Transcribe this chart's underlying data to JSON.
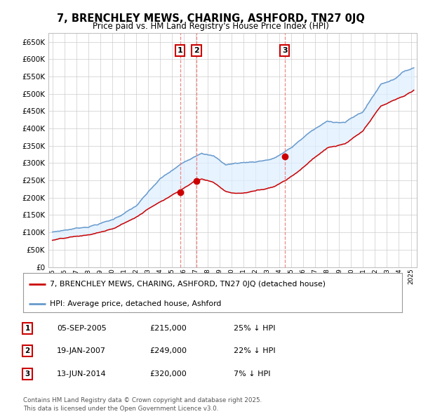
{
  "title": "7, BRENCHLEY MEWS, CHARING, ASHFORD, TN27 0JQ",
  "subtitle": "Price paid vs. HM Land Registry's House Price Index (HPI)",
  "ylim": [
    0,
    675000
  ],
  "yticks": [
    0,
    50000,
    100000,
    150000,
    200000,
    250000,
    300000,
    350000,
    400000,
    450000,
    500000,
    550000,
    600000,
    650000
  ],
  "ytick_labels": [
    "£0",
    "£50K",
    "£100K",
    "£150K",
    "£200K",
    "£250K",
    "£300K",
    "£350K",
    "£400K",
    "£450K",
    "£500K",
    "£550K",
    "£600K",
    "£650K"
  ],
  "hpi_color": "#6699cc",
  "price_color": "#cc0000",
  "vline_color": "#ee8888",
  "grid_color": "#cccccc",
  "fill_color": "#ddeeff",
  "sale_dates": [
    "2005-09-05",
    "2007-01-19",
    "2014-06-13"
  ],
  "sale_prices": [
    215000,
    249000,
    320000
  ],
  "sale_labels": [
    "1",
    "2",
    "3"
  ],
  "legend_price_label": "7, BRENCHLEY MEWS, CHARING, ASHFORD, TN27 0JQ (detached house)",
  "legend_hpi_label": "HPI: Average price, detached house, Ashford",
  "table_rows": [
    [
      "1",
      "05-SEP-2005",
      "£215,000",
      "25% ↓ HPI"
    ],
    [
      "2",
      "19-JAN-2007",
      "£249,000",
      "22% ↓ HPI"
    ],
    [
      "3",
      "13-JUN-2014",
      "£320,000",
      "7% ↓ HPI"
    ]
  ],
  "footer": "Contains HM Land Registry data © Crown copyright and database right 2025.\nThis data is licensed under the Open Government Licence v3.0."
}
